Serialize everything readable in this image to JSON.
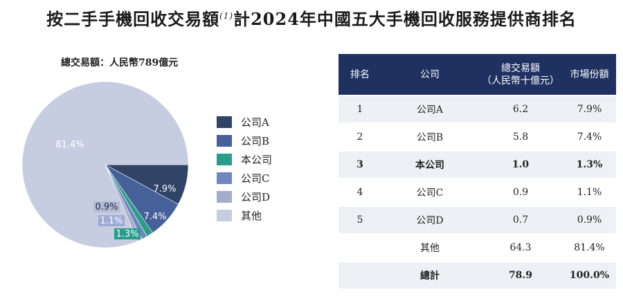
{
  "title": "按二手手機回收交易額",
  "title_note": "(1)",
  "title_tail": "計2024年中國五大手機回收服務提供商排名",
  "pie_subtitle": "總交易額：人民幣789億元",
  "chart_data": {
    "type": "pie",
    "unit": "%",
    "slices": [
      {
        "label": "公司A",
        "value": 7.9,
        "color": "#2f4466",
        "value_label": "7.9%"
      },
      {
        "label": "公司B",
        "value": 7.4,
        "color": "#46609a",
        "value_label": "7.4%"
      },
      {
        "label": "本公司",
        "value": 1.3,
        "color": "#2a9c8a",
        "value_label": "1.3%"
      },
      {
        "label": "公司C",
        "value": 1.1,
        "color": "#7086bf",
        "value_label": "1.1%"
      },
      {
        "label": "公司D",
        "value": 0.9,
        "color": "#a3acc9",
        "value_label": "0.9%"
      },
      {
        "label": "其他",
        "value": 81.4,
        "color": "#c6cde1",
        "value_label": "81.4%"
      }
    ]
  },
  "table": {
    "headers": [
      "排名",
      "公司",
      "總交易額\n（人民幣十億元）",
      "市場份額"
    ],
    "rows": [
      {
        "rank": "1",
        "company": "公司A",
        "amount": "6.2",
        "share": "7.9%"
      },
      {
        "rank": "2",
        "company": "公司B",
        "amount": "5.8",
        "share": "7.4%"
      },
      {
        "rank": "3",
        "company": "本公司",
        "amount": "1.0",
        "share": "1.3%"
      },
      {
        "rank": "4",
        "company": "公司C",
        "amount": "0.9",
        "share": "1.1%"
      },
      {
        "rank": "5",
        "company": "公司D",
        "amount": "0.7",
        "share": "0.9%"
      },
      {
        "rank": "",
        "company": "其他",
        "amount": "64.3",
        "share": "81.4%"
      },
      {
        "rank": "",
        "company": "總計",
        "amount": "78.9",
        "share": "100.0%"
      }
    ]
  }
}
